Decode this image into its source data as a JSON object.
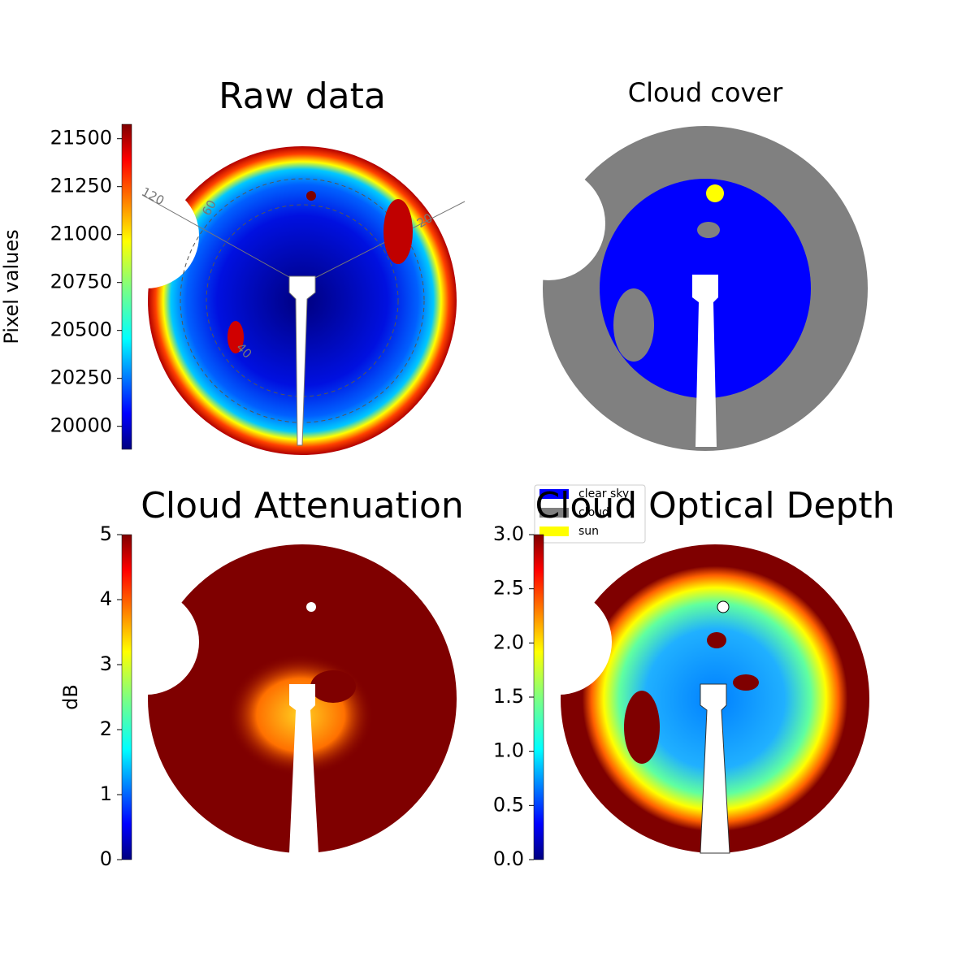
{
  "chart_data": [
    {
      "type": "image",
      "title": "Raw data",
      "colorbar": {
        "label": "Pixel values",
        "lim": [
          19880,
          21575
        ],
        "ticks": [
          20000,
          20250,
          20500,
          20750,
          21000,
          21250,
          21500
        ]
      },
      "annotations": [
        "120",
        "60",
        "20",
        "40"
      ]
    },
    {
      "type": "image",
      "title": "Cloud cover",
      "legend": [
        {
          "name": "clear sky",
          "color": "#0000ff"
        },
        {
          "name": "cloud",
          "color": "#808080"
        },
        {
          "name": "sun",
          "color": "#ffff00"
        }
      ]
    },
    {
      "type": "image",
      "title": "Cloud Attenuation",
      "colorbar": {
        "label": "dB",
        "lim": [
          0,
          5
        ],
        "ticks": [
          0,
          1,
          2,
          3,
          4,
          5
        ]
      }
    },
    {
      "type": "image",
      "title": "Cloud Optical Depth",
      "colorbar": {
        "lim": [
          0,
          3
        ],
        "ticks": [
          {
            "value": 0,
            "label": "0.0"
          },
          0.5,
          {
            "value": 1,
            "label": "1.0"
          },
          1.5,
          {
            "value": 2,
            "label": "2.0"
          },
          2.5,
          {
            "value": 3,
            "label": "3.0"
          }
        ]
      }
    }
  ]
}
